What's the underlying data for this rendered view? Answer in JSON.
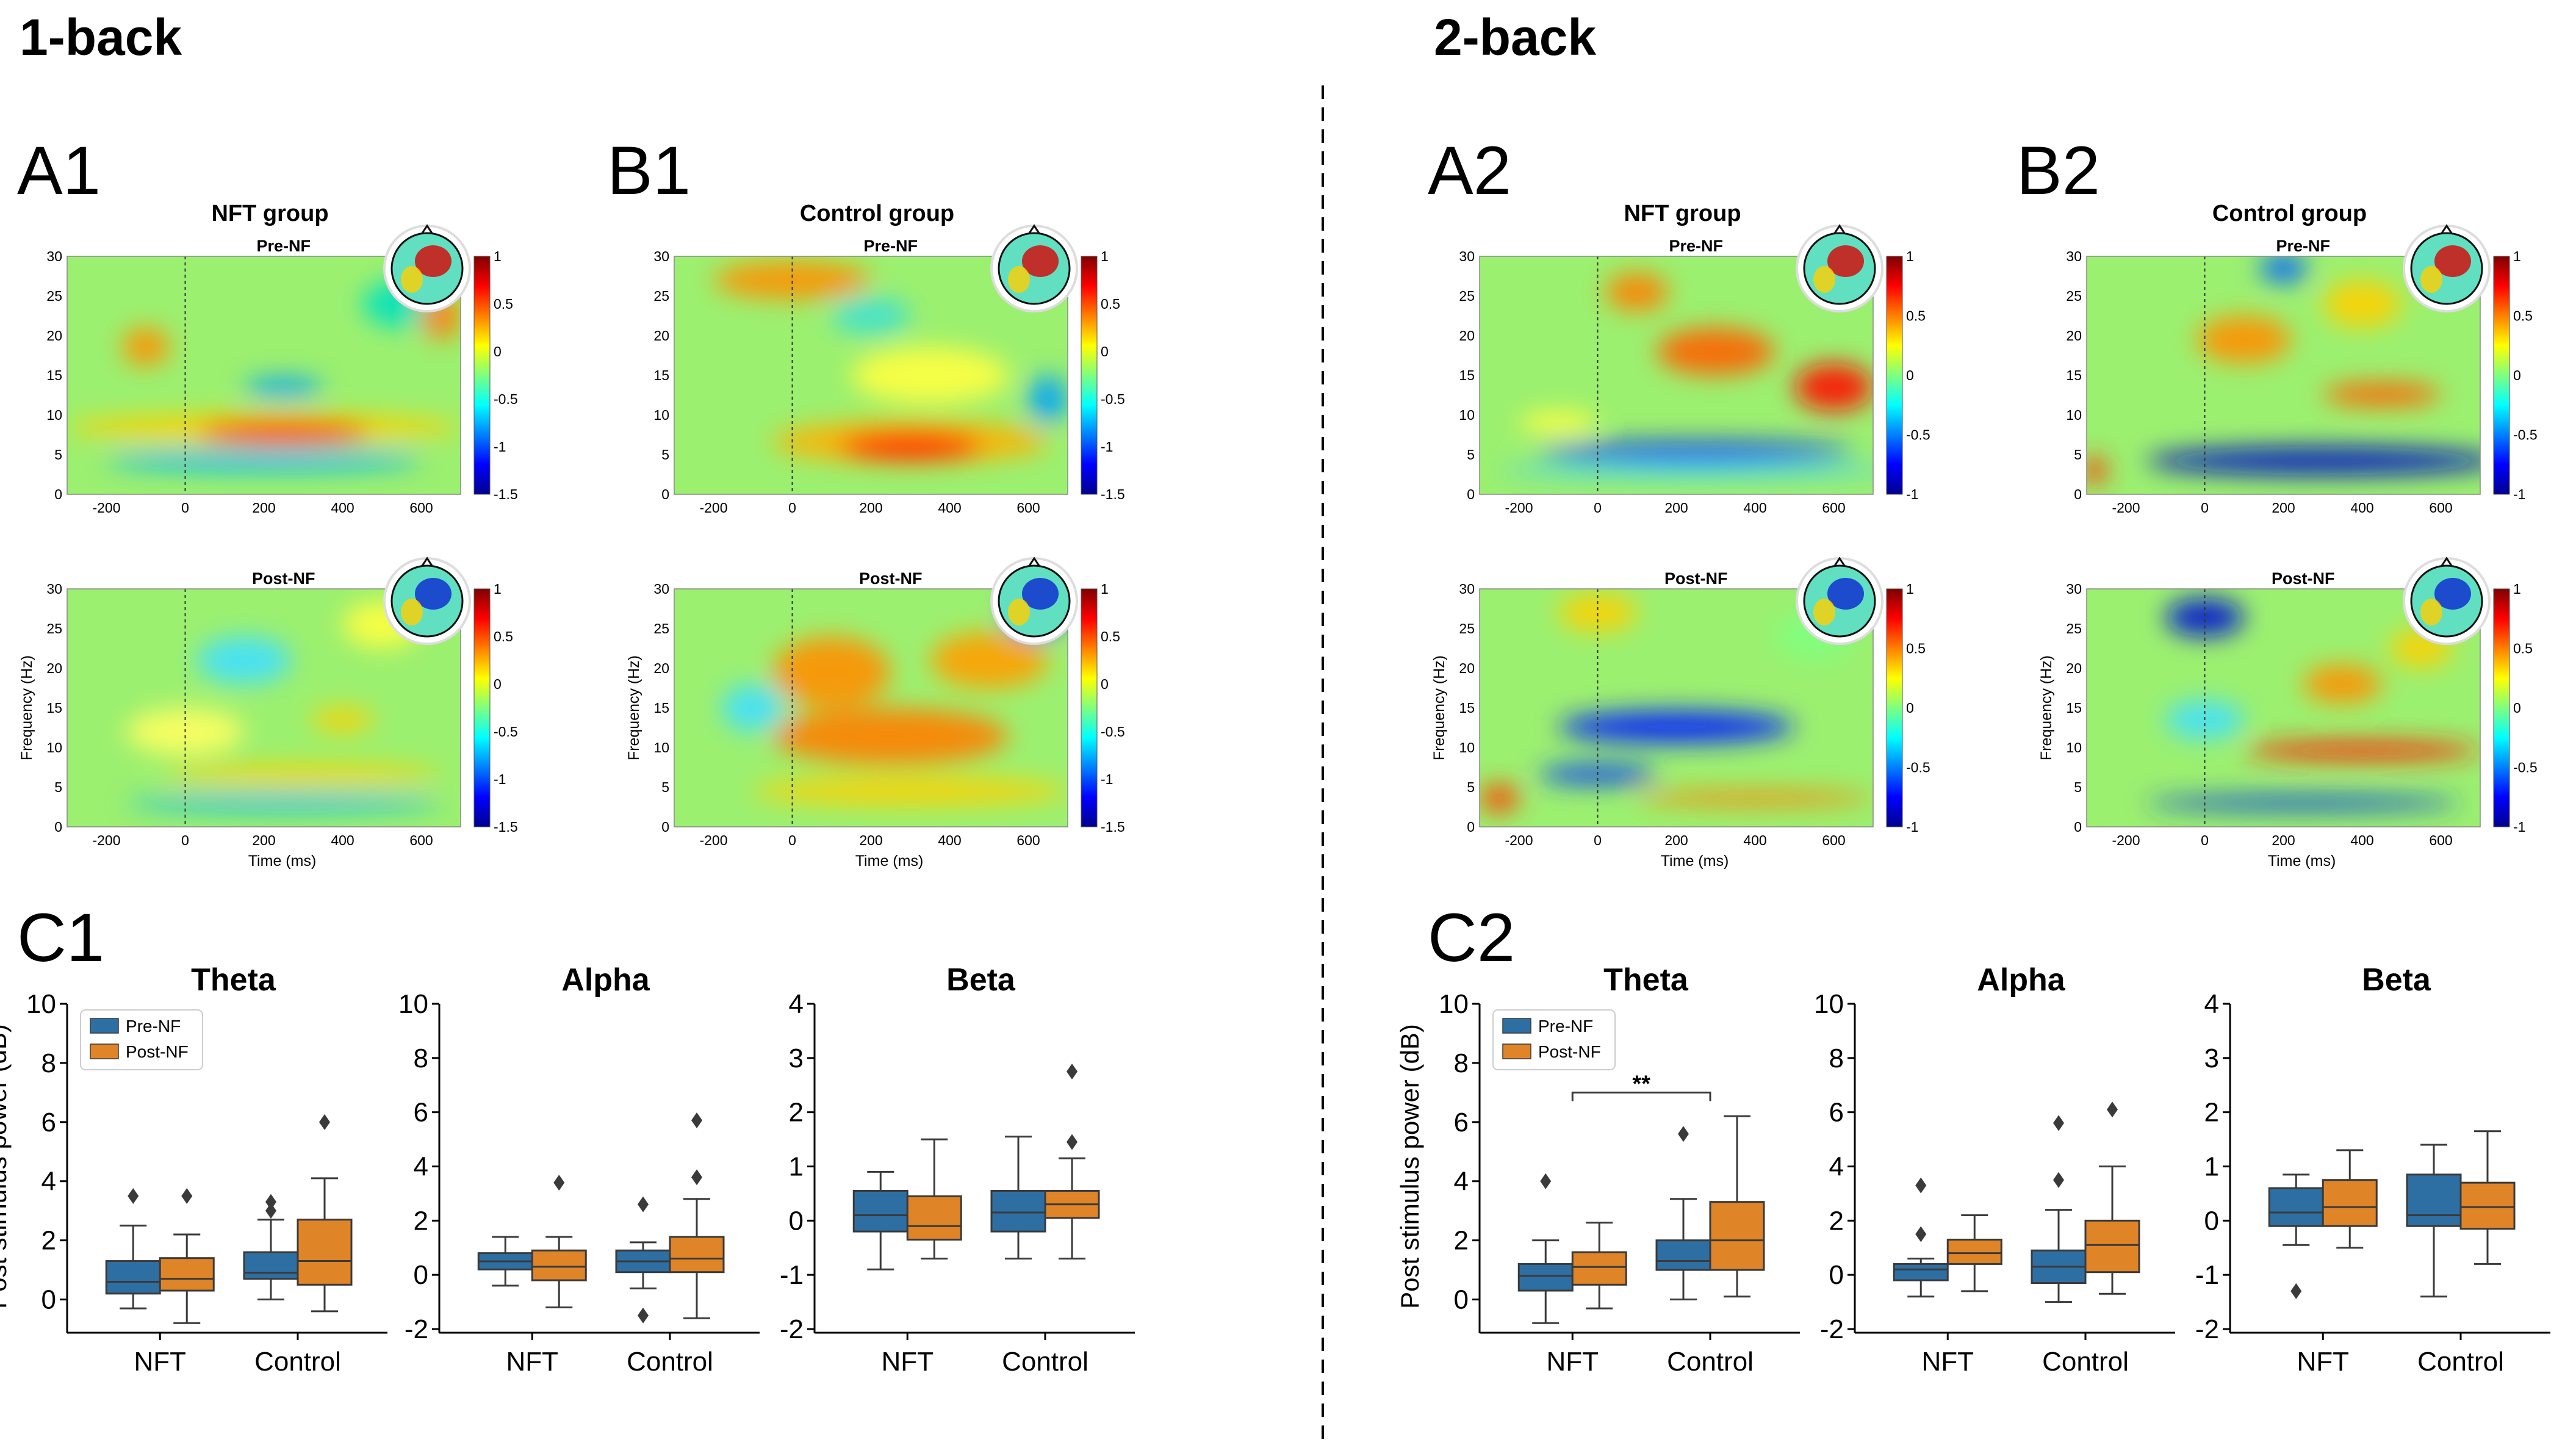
{
  "sections": {
    "left": "1-back",
    "right": "2-back"
  },
  "panels": {
    "A1": "A1",
    "B1": "B1",
    "A2": "A2",
    "B2": "B2",
    "C1": "C1",
    "C2": "C2"
  },
  "colors": {
    "pre": "#2e6fa3",
    "post": "#e08428"
  },
  "chart_data": [
    {
      "type": "heatmap",
      "id": "A1",
      "section": "1-back",
      "group_title": "NFT group",
      "subplots": [
        {
          "title": "Pre-NF"
        },
        {
          "title": "Post-NF"
        }
      ],
      "x_ticks": [
        -200,
        0,
        200,
        400,
        600
      ],
      "xlim": [
        -300,
        700
      ],
      "y_ticks": [
        0,
        5,
        10,
        15,
        20,
        25,
        30
      ],
      "ylim": [
        0,
        30
      ],
      "xlabel": "Time (ms)",
      "ylabel": "Frequency (Hz)",
      "colorbar_ticks": [
        1,
        0.5,
        0,
        -0.5,
        -1,
        -1.5
      ],
      "colorbar_range": [
        -1.5,
        1
      ]
    },
    {
      "type": "heatmap",
      "id": "B1",
      "section": "1-back",
      "group_title": "Control group",
      "subplots": [
        {
          "title": "Pre-NF"
        },
        {
          "title": "Post-NF"
        }
      ],
      "x_ticks": [
        -200,
        0,
        200,
        400,
        600
      ],
      "xlim": [
        -300,
        700
      ],
      "y_ticks": [
        0,
        5,
        10,
        15,
        20,
        25,
        30
      ],
      "ylim": [
        0,
        30
      ],
      "xlabel": "Time (ms)",
      "ylabel": "Frequency (Hz)",
      "colorbar_ticks": [
        1,
        0.5,
        0,
        -0.5,
        -1,
        -1.5
      ],
      "colorbar_range": [
        -1.5,
        1
      ]
    },
    {
      "type": "heatmap",
      "id": "A2",
      "section": "2-back",
      "group_title": "NFT group",
      "subplots": [
        {
          "title": "Pre-NF"
        },
        {
          "title": "Post-NF"
        }
      ],
      "x_ticks": [
        -200,
        0,
        200,
        400,
        600
      ],
      "xlim": [
        -300,
        700
      ],
      "y_ticks": [
        0,
        5,
        10,
        15,
        20,
        25,
        30
      ],
      "ylim": [
        0,
        30
      ],
      "xlabel": "Time (ms)",
      "ylabel": "Frequency (Hz)",
      "colorbar_ticks": [
        1,
        0.5,
        0,
        -0.5,
        -1
      ],
      "colorbar_range": [
        -1,
        1
      ]
    },
    {
      "type": "heatmap",
      "id": "B2",
      "section": "2-back",
      "group_title": "Control group",
      "subplots": [
        {
          "title": "Pre-NF"
        },
        {
          "title": "Post-NF"
        }
      ],
      "x_ticks": [
        -200,
        0,
        200,
        400,
        600
      ],
      "xlim": [
        -300,
        700
      ],
      "y_ticks": [
        0,
        5,
        10,
        15,
        20,
        25,
        30
      ],
      "ylim": [
        0,
        30
      ],
      "xlabel": "Time (ms)",
      "ylabel": "Frequency (Hz)",
      "colorbar_ticks": [
        1,
        0.5,
        0,
        -0.5,
        -1
      ],
      "colorbar_range": [
        -1,
        1
      ]
    },
    {
      "type": "box",
      "id": "C1",
      "section": "1-back",
      "ylabel": "Post stimulus power (dB)",
      "categories": [
        "NFT",
        "Control"
      ],
      "legend": [
        "Pre-NF",
        "Post-NF"
      ],
      "subplots": [
        {
          "title": "Theta",
          "ylim": [
            -1,
            10
          ],
          "yticks": [
            0,
            2,
            4,
            6,
            8,
            10
          ],
          "legend": true,
          "boxes": [
            {
              "category": "NFT",
              "series": "Pre-NF",
              "min": -0.3,
              "q1": 0.2,
              "median": 0.6,
              "q3": 1.3,
              "max": 2.5,
              "outliers": [
                3.5
              ]
            },
            {
              "category": "NFT",
              "series": "Post-NF",
              "min": -0.8,
              "q1": 0.3,
              "median": 0.7,
              "q3": 1.4,
              "max": 2.2,
              "outliers": [
                3.5
              ]
            },
            {
              "category": "Control",
              "series": "Pre-NF",
              "min": 0.0,
              "q1": 0.7,
              "median": 0.9,
              "q3": 1.6,
              "max": 2.7,
              "outliers": [
                3.0,
                3.3
              ]
            },
            {
              "category": "Control",
              "series": "Post-NF",
              "min": -0.4,
              "q1": 0.5,
              "median": 1.3,
              "q3": 2.7,
              "max": 4.1,
              "outliers": [
                6.0
              ]
            }
          ]
        },
        {
          "title": "Alpha",
          "ylim": [
            -2,
            10
          ],
          "yticks": [
            -2,
            0,
            2,
            4,
            6,
            8,
            10
          ],
          "boxes": [
            {
              "category": "NFT",
              "series": "Pre-NF",
              "min": -0.4,
              "q1": 0.2,
              "median": 0.5,
              "q3": 0.8,
              "max": 1.4,
              "outliers": []
            },
            {
              "category": "NFT",
              "series": "Post-NF",
              "min": -1.2,
              "q1": -0.2,
              "median": 0.3,
              "q3": 0.9,
              "max": 1.4,
              "outliers": [
                3.4
              ]
            },
            {
              "category": "Control",
              "series": "Pre-NF",
              "min": -0.5,
              "q1": 0.1,
              "median": 0.5,
              "q3": 0.9,
              "max": 1.2,
              "outliers": [
                2.6,
                -1.5
              ]
            },
            {
              "category": "Control",
              "series": "Post-NF",
              "min": -1.6,
              "q1": 0.1,
              "median": 0.6,
              "q3": 1.4,
              "max": 2.8,
              "outliers": [
                3.6,
                5.7
              ]
            }
          ]
        },
        {
          "title": "Beta",
          "ylim": [
            -2,
            4
          ],
          "yticks": [
            -2,
            -1,
            0,
            1,
            2,
            3,
            4
          ],
          "boxes": [
            {
              "category": "NFT",
              "series": "Pre-NF",
              "min": -0.9,
              "q1": -0.2,
              "median": 0.1,
              "q3": 0.55,
              "max": 0.9,
              "outliers": []
            },
            {
              "category": "NFT",
              "series": "Post-NF",
              "min": -0.7,
              "q1": -0.35,
              "median": -0.1,
              "q3": 0.45,
              "max": 1.5,
              "outliers": []
            },
            {
              "category": "Control",
              "series": "Pre-NF",
              "min": -0.7,
              "q1": -0.2,
              "median": 0.15,
              "q3": 0.55,
              "max": 1.55,
              "outliers": []
            },
            {
              "category": "Control",
              "series": "Post-NF",
              "min": -0.7,
              "q1": 0.05,
              "median": 0.3,
              "q3": 0.55,
              "max": 1.15,
              "outliers": [
                1.45,
                2.75
              ]
            }
          ]
        }
      ]
    },
    {
      "type": "box",
      "id": "C2",
      "section": "2-back",
      "ylabel": "Post stimulus power (dB)",
      "categories": [
        "NFT",
        "Control"
      ],
      "legend": [
        "Pre-NF",
        "Post-NF"
      ],
      "subplots": [
        {
          "title": "Theta",
          "ylim": [
            -1,
            10
          ],
          "yticks": [
            0,
            2,
            4,
            6,
            8,
            10
          ],
          "legend": true,
          "significance": {
            "label": "**",
            "between": [
              "NFT",
              "Control"
            ],
            "y": 7
          },
          "boxes": [
            {
              "category": "NFT",
              "series": "Pre-NF",
              "min": -0.8,
              "q1": 0.3,
              "median": 0.8,
              "q3": 1.2,
              "max": 2.0,
              "outliers": [
                4.0
              ]
            },
            {
              "category": "NFT",
              "series": "Post-NF",
              "min": -0.3,
              "q1": 0.5,
              "median": 1.1,
              "q3": 1.6,
              "max": 2.6,
              "outliers": []
            },
            {
              "category": "Control",
              "series": "Pre-NF",
              "min": 0.0,
              "q1": 1.0,
              "median": 1.3,
              "q3": 2.0,
              "max": 3.4,
              "outliers": [
                5.6
              ]
            },
            {
              "category": "Control",
              "series": "Post-NF",
              "min": 0.1,
              "q1": 1.0,
              "median": 2.0,
              "q3": 3.3,
              "max": 6.2,
              "outliers": []
            }
          ]
        },
        {
          "title": "Alpha",
          "ylim": [
            -2,
            10
          ],
          "yticks": [
            -2,
            0,
            2,
            4,
            6,
            8,
            10
          ],
          "boxes": [
            {
              "category": "NFT",
              "series": "Pre-NF",
              "min": -0.8,
              "q1": -0.2,
              "median": 0.2,
              "q3": 0.4,
              "max": 0.6,
              "outliers": [
                1.5,
                3.3
              ]
            },
            {
              "category": "NFT",
              "series": "Post-NF",
              "min": -0.6,
              "q1": 0.4,
              "median": 0.8,
              "q3": 1.3,
              "max": 2.2,
              "outliers": []
            },
            {
              "category": "Control",
              "series": "Pre-NF",
              "min": -1.0,
              "q1": -0.3,
              "median": 0.3,
              "q3": 0.9,
              "max": 2.4,
              "outliers": [
                3.5,
                5.6
              ]
            },
            {
              "category": "Control",
              "series": "Post-NF",
              "min": -0.7,
              "q1": 0.1,
              "median": 1.1,
              "q3": 2.0,
              "max": 4.0,
              "outliers": [
                6.1
              ]
            }
          ]
        },
        {
          "title": "Beta",
          "ylim": [
            -2,
            4
          ],
          "yticks": [
            -2,
            -1,
            0,
            1,
            2,
            3,
            4
          ],
          "boxes": [
            {
              "category": "NFT",
              "series": "Pre-NF",
              "min": -0.45,
              "q1": -0.1,
              "median": 0.15,
              "q3": 0.6,
              "max": 0.85,
              "outliers": [
                -1.3
              ]
            },
            {
              "category": "NFT",
              "series": "Post-NF",
              "min": -0.5,
              "q1": -0.1,
              "median": 0.25,
              "q3": 0.75,
              "max": 1.3,
              "outliers": []
            },
            {
              "category": "Control",
              "series": "Pre-NF",
              "min": -1.4,
              "q1": -0.1,
              "median": 0.1,
              "q3": 0.85,
              "max": 1.4,
              "outliers": []
            },
            {
              "category": "Control",
              "series": "Post-NF",
              "min": -0.8,
              "q1": -0.15,
              "median": 0.25,
              "q3": 0.7,
              "max": 1.65,
              "outliers": []
            }
          ]
        }
      ]
    }
  ]
}
